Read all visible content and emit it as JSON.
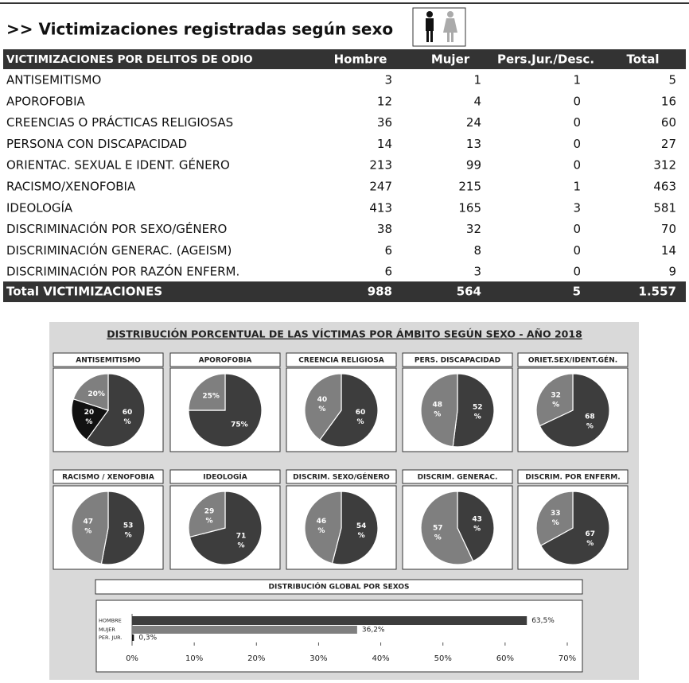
{
  "header": {
    "title": ">> Victimizaciones registradas según sexo"
  },
  "table": {
    "columns": [
      "VICTIMIZACIONES POR DELITOS DE ODIO",
      "Hombre",
      "Mujer",
      "Pers.Jur./Desc.",
      "Total"
    ],
    "rows": [
      [
        "ANTISEMITISMO",
        3,
        1,
        1,
        5
      ],
      [
        "APOROFOBIA",
        12,
        4,
        0,
        16
      ],
      [
        "CREENCIAS O PRÁCTICAS RELIGIOSAS",
        36,
        24,
        0,
        60
      ],
      [
        "PERSONA CON DISCAPACIDAD",
        14,
        13,
        0,
        27
      ],
      [
        "ORIENTAC. SEXUAL E IDENT. GÉNERO",
        213,
        99,
        0,
        312
      ],
      [
        "RACISMO/XENOFOBIA",
        247,
        215,
        1,
        463
      ],
      [
        "IDEOLOGÍA",
        413,
        165,
        3,
        581
      ],
      [
        "DISCRIMINACIÓN POR SEXO/GÉNERO",
        38,
        32,
        0,
        70
      ],
      [
        "DISCRIMINACIÓN GENERAC. (AGEISM)",
        6,
        8,
        0,
        14
      ],
      [
        "DISCRIMINACIÓN POR RAZÓN ENFERM.",
        6,
        3,
        0,
        9
      ]
    ],
    "total": [
      "Total VICTIMIZACIONES",
      988,
      564,
      5,
      "1.557"
    ]
  },
  "panel": {
    "title": "DISTRIBUCIÓN PORCENTUAL DE LAS VÍCTIMAS POR ÁMBITO SEGÚN SEXO - AÑO 2018"
  },
  "chart_data": [
    {
      "type": "pie",
      "title": "ANTISEMITISMO",
      "values": [
        60,
        20,
        20
      ],
      "value_labels": [
        "60 %",
        "20 %",
        "20%"
      ],
      "colors": [
        "#3d3d3d",
        "#111111",
        "#7f7f7f"
      ]
    },
    {
      "type": "pie",
      "title": "APOROFOBIA",
      "values": [
        75,
        25
      ],
      "value_labels": [
        "75%",
        "25%"
      ],
      "colors": [
        "#3d3d3d",
        "#7f7f7f"
      ]
    },
    {
      "type": "pie",
      "title": "CREENCIA RELIGIOSA",
      "values": [
        60,
        40
      ],
      "value_labels": [
        "60 %",
        "40 %"
      ],
      "colors": [
        "#3d3d3d",
        "#7f7f7f"
      ]
    },
    {
      "type": "pie",
      "title": "PERS. DISCAPACIDAD",
      "values": [
        52,
        48
      ],
      "value_labels": [
        "52 %",
        "48 %"
      ],
      "colors": [
        "#3d3d3d",
        "#7f7f7f"
      ]
    },
    {
      "type": "pie",
      "title": "ORIET.SEX/IDENT.GÉN.",
      "values": [
        68,
        32
      ],
      "value_labels": [
        "68 %",
        "32 %"
      ],
      "colors": [
        "#3d3d3d",
        "#7f7f7f"
      ]
    },
    {
      "type": "pie",
      "title": "RACISMO / XENOFOBIA",
      "values": [
        53,
        47
      ],
      "value_labels": [
        "53 %",
        "47 %"
      ],
      "colors": [
        "#3d3d3d",
        "#7f7f7f"
      ]
    },
    {
      "type": "pie",
      "title": "IDEOLOGÍA",
      "values": [
        71,
        29
      ],
      "value_labels": [
        "71 %",
        "29 %"
      ],
      "colors": [
        "#3d3d3d",
        "#7f7f7f"
      ]
    },
    {
      "type": "pie",
      "title": "DISCRIM. SEXO/GÉNERO",
      "values": [
        54,
        46
      ],
      "value_labels": [
        "54 %",
        "46 %"
      ],
      "colors": [
        "#3d3d3d",
        "#7f7f7f"
      ]
    },
    {
      "type": "pie",
      "title": "DISCRIM. GENERAC.",
      "values": [
        43,
        57
      ],
      "value_labels": [
        "43 %",
        "57 %"
      ],
      "colors": [
        "#3d3d3d",
        "#7f7f7f"
      ]
    },
    {
      "type": "pie",
      "title": "DISCRIM. POR ENFERM.",
      "values": [
        67,
        33
      ],
      "value_labels": [
        "67 %",
        "33 %"
      ],
      "colors": [
        "#3d3d3d",
        "#7f7f7f"
      ]
    },
    {
      "type": "hbar",
      "title": "DISTRIBUCIÓN GLOBAL POR SEXOS",
      "categories": [
        "HOMBRE",
        "MUJER",
        "PER. JUR."
      ],
      "values": [
        63.5,
        36.2,
        0.3
      ],
      "value_labels": [
        "63,5%",
        "36,2%",
        "0,3%"
      ],
      "colors": [
        "#3d3d3d",
        "#7f7f7f",
        "#111111"
      ],
      "xlim": [
        0,
        70
      ],
      "xticks": [
        {
          "value": 0,
          "label": "0%"
        },
        {
          "value": 10,
          "label": "10%"
        },
        {
          "value": 20,
          "label": "20%"
        },
        {
          "value": 30,
          "label": "30%"
        },
        {
          "value": 40,
          "label": "40%"
        },
        {
          "value": 50,
          "label": "50%"
        },
        {
          "value": 60,
          "label": "60%"
        },
        {
          "value": 70,
          "label": "70%"
        }
      ]
    }
  ]
}
